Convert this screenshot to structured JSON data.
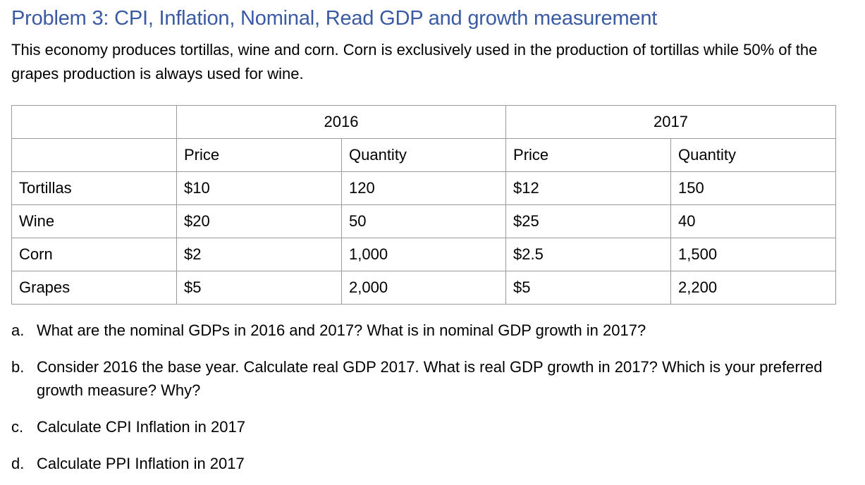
{
  "heading": "Problem 3: CPI, Inflation, Nominal, Read GDP and growth measurement",
  "intro": "This economy produces tortillas, wine and corn. Corn is exclusively used in the production of tortillas while 50% of the grapes production is always used for wine.",
  "table": {
    "years": [
      "2016",
      "2017"
    ],
    "columns": [
      "Price",
      "Quantity",
      "Price",
      "Quantity"
    ],
    "rows": [
      {
        "name": "Tortillas",
        "p2016": "$10",
        "q2016": "120",
        "p2017": "$12",
        "q2017": "150"
      },
      {
        "name": "Wine",
        "p2016": "$20",
        "q2016": "50",
        "p2017": "$25",
        "q2017": "40"
      },
      {
        "name": "Corn",
        "p2016": "$2",
        "q2016": "1,000",
        "p2017": "$2.5",
        "q2017": "1,500"
      },
      {
        "name": "Grapes",
        "p2016": "$5",
        "q2016": "2,000",
        "p2017": "$5",
        "q2017": "2,200"
      }
    ]
  },
  "questions": [
    {
      "marker": "a.",
      "text": "What are the nominal GDPs in 2016 and 2017? What is in nominal GDP growth in 2017?"
    },
    {
      "marker": "b.",
      "text": "Consider 2016 the base year. Calculate real GDP 2017. What is real GDP growth in 2017? Which is your preferred growth measure? Why?"
    },
    {
      "marker": "c.",
      "text": "Calculate CPI Inflation in 2017"
    },
    {
      "marker": "d.",
      "text": "Calculate PPI Inflation in 2017"
    }
  ],
  "colors": {
    "heading": "#3a5aa4",
    "table_border": "#9a9a9a"
  }
}
